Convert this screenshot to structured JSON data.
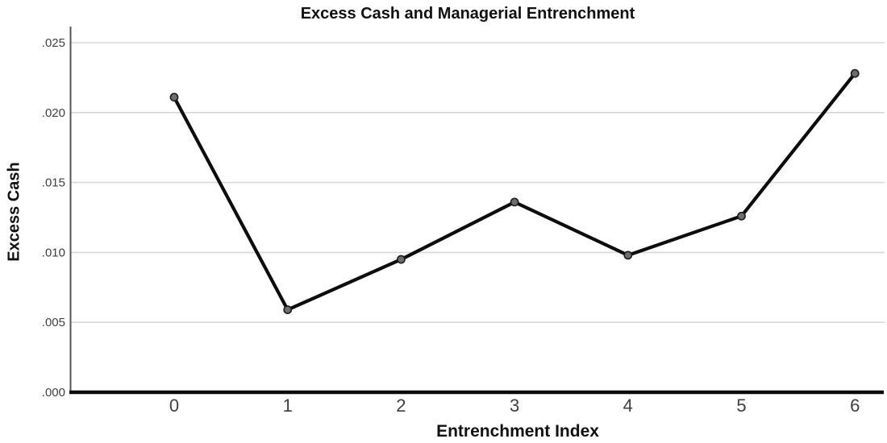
{
  "chart_data": {
    "type": "line",
    "title": "Excess Cash and Managerial Entrenchment",
    "xlabel": "Entrenchment Index",
    "ylabel": "Excess Cash",
    "x": [
      0,
      1,
      2,
      3,
      4,
      5,
      6
    ],
    "series": [
      {
        "name": "Excess Cash",
        "values": [
          0.0211,
          0.0059,
          0.0095,
          0.0136,
          0.0098,
          0.0126,
          0.0228
        ]
      }
    ],
    "xticks": [
      0,
      1,
      2,
      3,
      4,
      5,
      6
    ],
    "xtick_labels": [
      "0",
      "1",
      "2",
      "3",
      "4",
      "5",
      "6"
    ],
    "yticks": [
      0.0,
      0.005,
      0.01,
      0.015,
      0.02,
      0.025
    ],
    "ytick_labels": [
      ".000",
      ".005",
      ".010",
      ".015",
      ".020",
      ".025"
    ],
    "xlim": [
      -0.92,
      6.26
    ],
    "ylim": [
      0.0,
      0.0262
    ],
    "grid": "horizontal",
    "legend": "none",
    "marker": "circle"
  },
  "style": {
    "background": "#ffffff",
    "grid_color": "#d8d8d8",
    "y_axis_color": "#555555",
    "x_axis_color": "#0a0a0a",
    "line_color": "#0d0d0d",
    "marker_fill": "#6e6e6e",
    "marker_stroke": "#1c1c1c",
    "tick_label_color": "#3f3f3f",
    "title_color": "#111111"
  }
}
